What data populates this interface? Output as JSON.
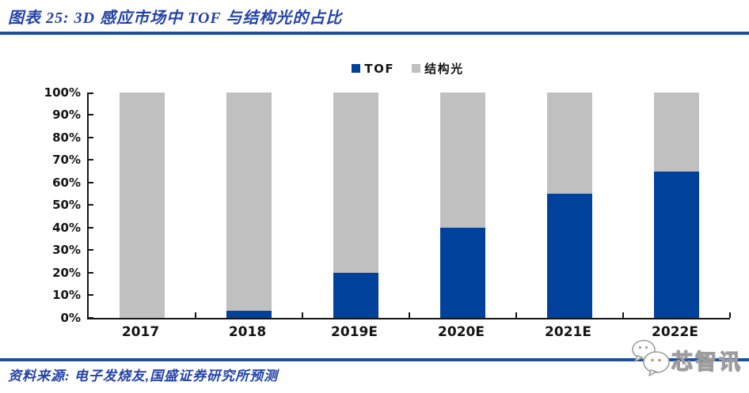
{
  "header": {
    "title": "图表 25: 3D 感应市场中 TOF 与结构光的占比"
  },
  "chart_data": {
    "type": "bar",
    "stacked": true,
    "title": "3D感应市场中TOF与结构光的占比",
    "categories": [
      "2017",
      "2018",
      "2019E",
      "2020E",
      "2021E",
      "2022E"
    ],
    "series": [
      {
        "name": "TOF",
        "color": "#00419b",
        "values": [
          0,
          3,
          20,
          40,
          55,
          65
        ]
      },
      {
        "name": "结构光",
        "color": "#c0c0c0",
        "values": [
          100,
          97,
          80,
          60,
          45,
          35
        ]
      }
    ],
    "ylim": [
      0,
      100
    ],
    "y_tick_labels": [
      "0%",
      "10%",
      "20%",
      "30%",
      "40%",
      "50%",
      "60%",
      "70%",
      "80%",
      "90%",
      "100%"
    ],
    "xlabel": "",
    "ylabel": "",
    "grid": false,
    "legend_position": "top-center"
  },
  "footer": {
    "source": "资料来源: 电子发烧友,国盛证券研究所预测"
  },
  "watermark": {
    "label": "芯智讯",
    "icon": "wechat-chat-bubbles-icon"
  },
  "colors": {
    "tof_blue": "#00419b",
    "structured_light_gray": "#c0c0c0",
    "rule_navy": "#1f4e9b",
    "title_blue": "#2343a6",
    "axis_black": "#151515"
  }
}
